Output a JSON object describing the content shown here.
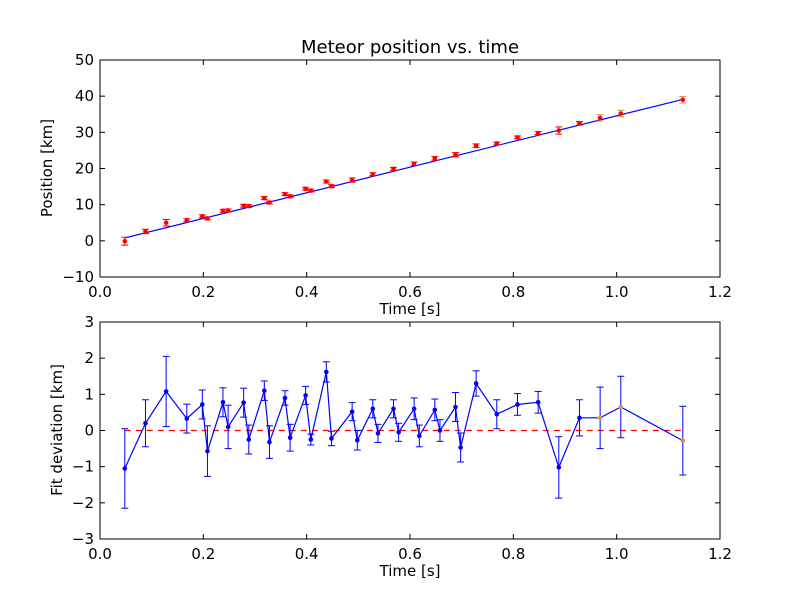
{
  "chart_data": [
    {
      "type": "scatter",
      "title": "Meteor position vs. time",
      "xlabel": "Time [s]",
      "ylabel": "Position [km]",
      "xlim": [
        0.0,
        1.2
      ],
      "ylim": [
        -10,
        50
      ],
      "xticks": [
        "0.0",
        "0.2",
        "0.4",
        "0.6",
        "0.8",
        "1.0",
        "1.2"
      ],
      "yticks": [
        "−10",
        "0",
        "10",
        "20",
        "30",
        "40",
        "50"
      ],
      "grid": false,
      "colors": {
        "points": "#ff0000",
        "errorbars_early": "#ff0000",
        "errorbars_late": "#c89b4a",
        "fit": "#0000ff"
      },
      "series": [
        {
          "kind": "points_with_errorbars",
          "x": [
            0.048,
            0.088,
            0.128,
            0.168,
            0.198,
            0.208,
            0.238,
            0.248,
            0.278,
            0.288,
            0.318,
            0.328,
            0.358,
            0.368,
            0.398,
            0.408,
            0.438,
            0.448,
            0.488,
            0.528,
            0.568,
            0.608,
            0.648,
            0.688,
            0.728,
            0.768,
            0.808,
            0.848,
            0.888,
            0.928,
            0.968,
            1.008,
            1.128
          ],
          "y": [
            -0.1,
            2.6,
            5.0,
            5.7,
            6.8,
            6.2,
            8.3,
            8.4,
            9.7,
            9.6,
            11.8,
            10.6,
            12.9,
            12.3,
            14.4,
            13.9,
            16.4,
            15.1,
            16.8,
            18.4,
            19.9,
            21.3,
            22.8,
            23.8,
            26.3,
            26.9,
            28.6,
            29.8,
            30.5,
            32.5,
            34.0,
            35.2,
            39.0
          ],
          "yerr": [
            1.1,
            0.6,
            0.9,
            0.4,
            0.4,
            0.4,
            0.4,
            0.4,
            0.4,
            0.4,
            0.4,
            0.4,
            0.4,
            0.4,
            0.4,
            0.4,
            0.4,
            0.4,
            0.6,
            0.4,
            0.4,
            0.5,
            0.5,
            0.6,
            0.5,
            0.4,
            0.4,
            0.4,
            1.0,
            0.5,
            0.9,
            0.9,
            0.9
          ]
        },
        {
          "kind": "fit_line",
          "x": [
            0.048,
            1.128
          ],
          "y": [
            0.8,
            39.1
          ]
        }
      ]
    },
    {
      "type": "line",
      "xlabel": "Time [s]",
      "ylabel": "Fit deviation [km]",
      "xlim": [
        0.0,
        1.2
      ],
      "ylim": [
        -3,
        3
      ],
      "xticks": [
        "0.0",
        "0.2",
        "0.4",
        "0.6",
        "0.8",
        "1.0",
        "1.2"
      ],
      "yticks": [
        "−3",
        "−2",
        "−1",
        "0",
        "1",
        "2",
        "3"
      ],
      "grid": false,
      "colors": {
        "line": "#0000ff",
        "zero_line": "#ff0000",
        "points_late": "#c89b4a"
      },
      "series": [
        {
          "kind": "deviation_with_errorbars",
          "x": [
            0.048,
            0.088,
            0.128,
            0.168,
            0.198,
            0.208,
            0.238,
            0.248,
            0.278,
            0.288,
            0.318,
            0.328,
            0.358,
            0.368,
            0.398,
            0.408,
            0.438,
            0.448,
            0.488,
            0.498,
            0.528,
            0.538,
            0.568,
            0.578,
            0.608,
            0.618,
            0.648,
            0.658,
            0.688,
            0.698,
            0.728,
            0.768,
            0.808,
            0.848,
            0.888,
            0.928,
            0.968,
            1.008,
            1.128
          ],
          "y": [
            -1.05,
            0.2,
            1.08,
            0.33,
            0.72,
            -0.57,
            0.78,
            0.1,
            0.77,
            -0.25,
            1.1,
            -0.32,
            0.9,
            -0.2,
            0.97,
            -0.25,
            1.62,
            -0.22,
            0.52,
            -0.27,
            0.6,
            -0.08,
            0.6,
            -0.05,
            0.6,
            -0.15,
            0.57,
            0.0,
            0.65,
            -0.47,
            1.3,
            0.45,
            0.72,
            0.78,
            -1.02,
            0.35,
            0.35,
            0.65,
            -0.28
          ],
          "yerr": [
            1.1,
            0.65,
            0.97,
            0.4,
            0.4,
            0.7,
            0.4,
            0.6,
            0.4,
            0.4,
            0.27,
            0.45,
            0.2,
            0.37,
            0.25,
            0.15,
            0.28,
            0.2,
            0.25,
            0.27,
            0.25,
            0.25,
            0.25,
            0.25,
            0.3,
            0.3,
            0.3,
            0.3,
            0.4,
            0.4,
            0.35,
            0.4,
            0.3,
            0.3,
            0.85,
            0.5,
            0.85,
            0.85,
            0.95
          ]
        },
        {
          "kind": "zero_reference",
          "style": "dashed",
          "x": [
            0.048,
            1.128
          ],
          "y": [
            0,
            0
          ]
        }
      ]
    }
  ]
}
